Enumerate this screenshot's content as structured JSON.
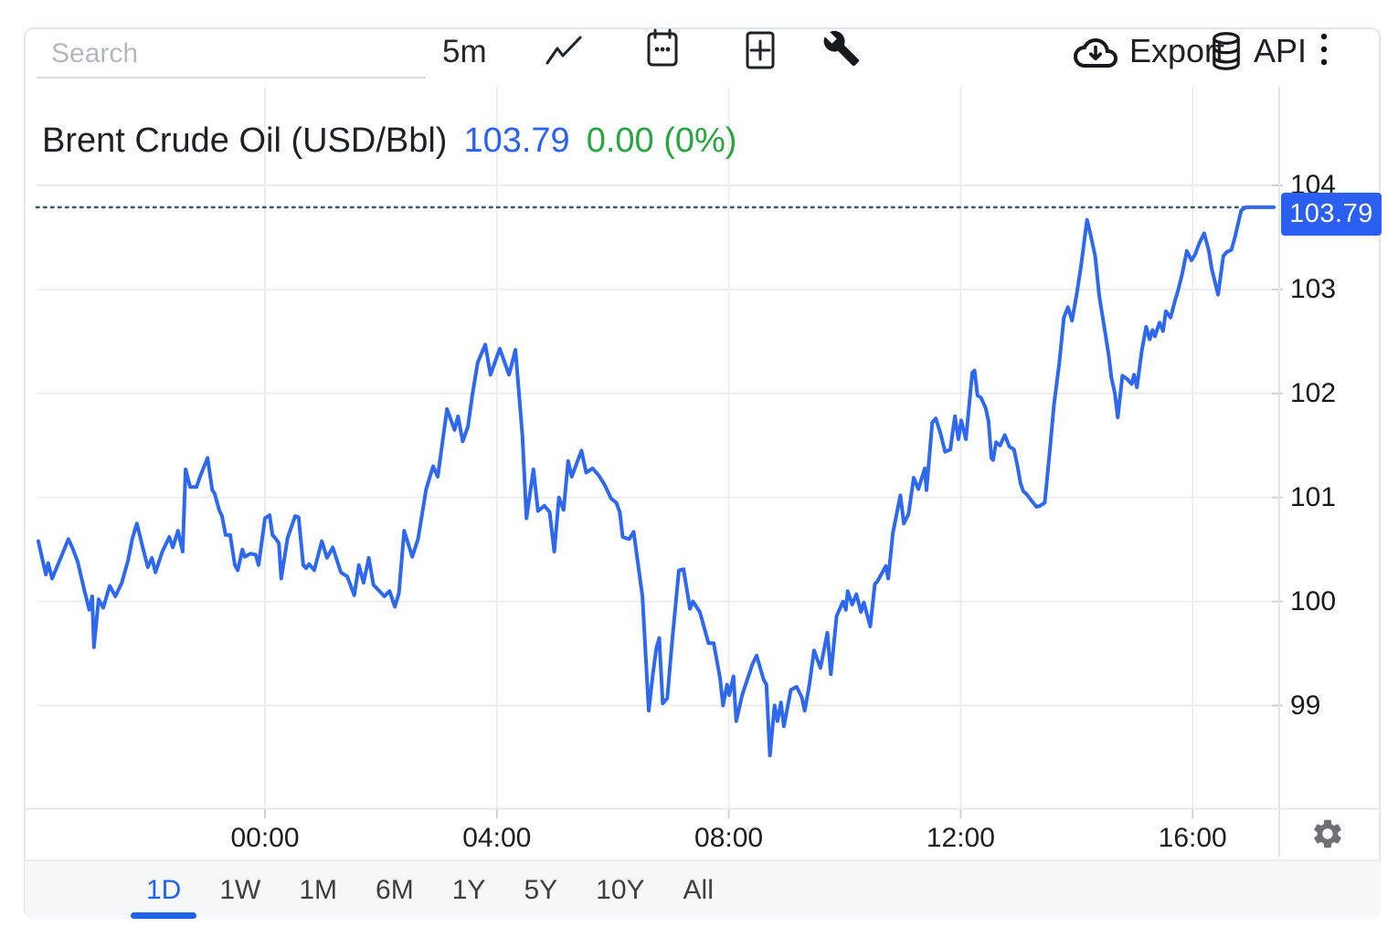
{
  "colors": {
    "line_blue": "#2e68ee",
    "badge_blue": "#2a5ff2",
    "price_text_blue": "#2b63f0",
    "change_green": "#27a53e",
    "active_tab_blue": "#1e63ea",
    "dotted_line": "#3d5a6e",
    "grid": "#ebedef",
    "tick": "#cfd3d7",
    "border": "#e4e7ea",
    "text_dark": "#1d2024",
    "icon_gray": "#6d7176"
  },
  "toolbar": {
    "search_placeholder": "Search",
    "interval": "5m",
    "export_label": "Export",
    "api_label": "API",
    "icons": [
      "line-chart-icon",
      "calendar-icon",
      "add-panel-icon",
      "tools-wrench-icon",
      "export-cloud-icon",
      "api-database-icon",
      "more-menu-icon",
      "settings-gear-icon"
    ]
  },
  "header": {
    "title": "Brent Crude Oil (USD/Bbl)",
    "price": "103.79",
    "change": "0.00 (0%)"
  },
  "price_badge": "103.79",
  "footer": {
    "tabs": [
      "1D",
      "1W",
      "1M",
      "6M",
      "1Y",
      "5Y",
      "10Y",
      "All"
    ],
    "active_tab": "1D"
  },
  "chart_data": {
    "type": "line",
    "title": "Brent Crude Oil (USD/Bbl) intraday",
    "series_name": "Brent Crude Oil",
    "unit": "USD/Bbl",
    "interval": "5m",
    "last_price": 103.79,
    "change": "0.00 (0%)",
    "grid": true,
    "line_color": "#2e68ee",
    "y_axis": {
      "ticks": [
        104,
        103,
        102,
        101,
        100,
        99
      ],
      "visible_range": [
        98.05,
        104.95
      ]
    },
    "x_axis": {
      "ticks": [
        {
          "t": 0,
          "label": "00:00"
        },
        {
          "t": 4,
          "label": "04:00"
        },
        {
          "t": 8,
          "label": "08:00"
        },
        {
          "t": 12,
          "label": "12:00"
        },
        {
          "t": 16,
          "label": "16:00"
        }
      ],
      "range_hours": [
        -3.95,
        17.45
      ],
      "note": "t = hours relative to midnight shown on axis"
    },
    "points": [
      [
        -3.91,
        100.58
      ],
      [
        -3.78,
        100.26
      ],
      [
        -3.74,
        100.37
      ],
      [
        -3.67,
        100.22
      ],
      [
        -3.59,
        100.33
      ],
      [
        -3.5,
        100.45
      ],
      [
        -3.39,
        100.6
      ],
      [
        -3.31,
        100.5
      ],
      [
        -3.23,
        100.38
      ],
      [
        -3.12,
        100.12
      ],
      [
        -3.03,
        99.92
      ],
      [
        -2.98,
        100.05
      ],
      [
        -2.95,
        99.56
      ],
      [
        -2.87,
        100.02
      ],
      [
        -2.79,
        99.94
      ],
      [
        -2.68,
        100.15
      ],
      [
        -2.58,
        100.05
      ],
      [
        -2.47,
        100.18
      ],
      [
        -2.36,
        100.4
      ],
      [
        -2.29,
        100.6
      ],
      [
        -2.21,
        100.75
      ],
      [
        -2.1,
        100.5
      ],
      [
        -2.02,
        100.33
      ],
      [
        -1.95,
        100.42
      ],
      [
        -1.89,
        100.28
      ],
      [
        -1.77,
        100.48
      ],
      [
        -1.65,
        100.62
      ],
      [
        -1.59,
        100.52
      ],
      [
        -1.5,
        100.68
      ],
      [
        -1.42,
        100.48
      ],
      [
        -1.37,
        101.27
      ],
      [
        -1.29,
        101.1
      ],
      [
        -1.18,
        101.1
      ],
      [
        -1.12,
        101.2
      ],
      [
        -0.99,
        101.38
      ],
      [
        -0.91,
        101.07
      ],
      [
        -0.87,
        101.04
      ],
      [
        -0.79,
        100.88
      ],
      [
        -0.74,
        100.82
      ],
      [
        -0.68,
        100.64
      ],
      [
        -0.6,
        100.64
      ],
      [
        -0.52,
        100.35
      ],
      [
        -0.47,
        100.3
      ],
      [
        -0.39,
        100.5
      ],
      [
        -0.35,
        100.43
      ],
      [
        -0.25,
        100.46
      ],
      [
        -0.16,
        100.45
      ],
      [
        -0.11,
        100.35
      ],
      [
        0.0,
        100.8
      ],
      [
        0.08,
        100.83
      ],
      [
        0.13,
        100.64
      ],
      [
        0.19,
        100.6
      ],
      [
        0.24,
        100.56
      ],
      [
        0.28,
        100.22
      ],
      [
        0.39,
        100.61
      ],
      [
        0.52,
        100.82
      ],
      [
        0.58,
        100.81
      ],
      [
        0.66,
        100.35
      ],
      [
        0.71,
        100.32
      ],
      [
        0.76,
        100.36
      ],
      [
        0.85,
        100.3
      ],
      [
        0.98,
        100.58
      ],
      [
        1.07,
        100.42
      ],
      [
        1.17,
        100.52
      ],
      [
        1.31,
        100.28
      ],
      [
        1.42,
        100.24
      ],
      [
        1.54,
        100.06
      ],
      [
        1.62,
        100.35
      ],
      [
        1.7,
        100.18
      ],
      [
        1.79,
        100.42
      ],
      [
        1.87,
        100.16
      ],
      [
        2.06,
        100.05
      ],
      [
        2.15,
        100.1
      ],
      [
        2.24,
        99.95
      ],
      [
        2.31,
        100.08
      ],
      [
        2.4,
        100.68
      ],
      [
        2.54,
        100.43
      ],
      [
        2.64,
        100.6
      ],
      [
        2.78,
        101.08
      ],
      [
        2.9,
        101.3
      ],
      [
        2.98,
        101.2
      ],
      [
        3.14,
        101.85
      ],
      [
        3.27,
        101.65
      ],
      [
        3.33,
        101.78
      ],
      [
        3.41,
        101.54
      ],
      [
        3.5,
        101.68
      ],
      [
        3.58,
        102.0
      ],
      [
        3.67,
        102.3
      ],
      [
        3.8,
        102.47
      ],
      [
        3.89,
        102.18
      ],
      [
        4.05,
        102.43
      ],
      [
        4.21,
        102.18
      ],
      [
        4.32,
        102.42
      ],
      [
        4.44,
        101.6
      ],
      [
        4.51,
        100.8
      ],
      [
        4.63,
        101.27
      ],
      [
        4.71,
        100.87
      ],
      [
        4.82,
        100.92
      ],
      [
        4.91,
        100.86
      ],
      [
        4.99,
        100.48
      ],
      [
        5.07,
        101.0
      ],
      [
        5.15,
        100.88
      ],
      [
        5.23,
        101.35
      ],
      [
        5.29,
        101.2
      ],
      [
        5.46,
        101.45
      ],
      [
        5.54,
        101.24
      ],
      [
        5.65,
        101.28
      ],
      [
        5.76,
        101.21
      ],
      [
        5.86,
        101.12
      ],
      [
        5.97,
        100.99
      ],
      [
        6.06,
        100.95
      ],
      [
        6.12,
        100.86
      ],
      [
        6.17,
        100.62
      ],
      [
        6.28,
        100.6
      ],
      [
        6.36,
        100.67
      ],
      [
        6.44,
        100.34
      ],
      [
        6.51,
        100.05
      ],
      [
        6.62,
        98.95
      ],
      [
        6.69,
        99.3
      ],
      [
        6.75,
        99.55
      ],
      [
        6.8,
        99.65
      ],
      [
        6.86,
        99.02
      ],
      [
        6.94,
        99.07
      ],
      [
        7.02,
        99.6
      ],
      [
        7.14,
        100.3
      ],
      [
        7.22,
        100.31
      ],
      [
        7.33,
        99.93
      ],
      [
        7.38,
        100.0
      ],
      [
        7.5,
        99.9
      ],
      [
        7.65,
        99.6
      ],
      [
        7.74,
        99.6
      ],
      [
        7.85,
        99.26
      ],
      [
        7.9,
        99.0
      ],
      [
        7.97,
        99.2
      ],
      [
        8.01,
        99.1
      ],
      [
        8.08,
        99.28
      ],
      [
        8.13,
        98.85
      ],
      [
        8.23,
        99.1
      ],
      [
        8.32,
        99.25
      ],
      [
        8.41,
        99.4
      ],
      [
        8.48,
        99.48
      ],
      [
        8.6,
        99.25
      ],
      [
        8.65,
        99.2
      ],
      [
        8.71,
        98.52
      ],
      [
        8.79,
        99.0
      ],
      [
        8.84,
        98.85
      ],
      [
        8.9,
        99.03
      ],
      [
        8.95,
        98.8
      ],
      [
        9.07,
        99.15
      ],
      [
        9.17,
        99.18
      ],
      [
        9.26,
        99.08
      ],
      [
        9.31,
        98.95
      ],
      [
        9.39,
        99.2
      ],
      [
        9.47,
        99.53
      ],
      [
        9.58,
        99.36
      ],
      [
        9.7,
        99.7
      ],
      [
        9.76,
        99.3
      ],
      [
        9.86,
        99.86
      ],
      [
        9.97,
        100.0
      ],
      [
        10.02,
        99.92
      ],
      [
        10.05,
        100.1
      ],
      [
        10.13,
        99.97
      ],
      [
        10.2,
        100.07
      ],
      [
        10.28,
        99.9
      ],
      [
        10.33,
        99.99
      ],
      [
        10.44,
        99.76
      ],
      [
        10.52,
        100.17
      ],
      [
        10.56,
        100.19
      ],
      [
        10.71,
        100.34
      ],
      [
        10.75,
        100.22
      ],
      [
        10.83,
        100.66
      ],
      [
        10.96,
        101.02
      ],
      [
        11.02,
        100.75
      ],
      [
        11.1,
        100.84
      ],
      [
        11.19,
        101.19
      ],
      [
        11.27,
        101.08
      ],
      [
        11.38,
        101.28
      ],
      [
        11.41,
        101.07
      ],
      [
        11.51,
        101.72
      ],
      [
        11.57,
        101.76
      ],
      [
        11.65,
        101.62
      ],
      [
        11.73,
        101.44
      ],
      [
        11.82,
        101.46
      ],
      [
        11.9,
        101.78
      ],
      [
        11.96,
        101.56
      ],
      [
        12.01,
        101.74
      ],
      [
        12.09,
        101.56
      ],
      [
        12.2,
        102.2
      ],
      [
        12.24,
        102.22
      ],
      [
        12.29,
        101.98
      ],
      [
        12.35,
        101.96
      ],
      [
        12.43,
        101.86
      ],
      [
        12.48,
        101.73
      ],
      [
        12.53,
        101.38
      ],
      [
        12.56,
        101.36
      ],
      [
        12.61,
        101.53
      ],
      [
        12.68,
        101.5
      ],
      [
        12.76,
        101.6
      ],
      [
        12.84,
        101.49
      ],
      [
        12.92,
        101.46
      ],
      [
        12.98,
        101.3
      ],
      [
        13.03,
        101.14
      ],
      [
        13.08,
        101.06
      ],
      [
        13.14,
        101.03
      ],
      [
        13.22,
        100.97
      ],
      [
        13.31,
        100.91
      ],
      [
        13.37,
        100.92
      ],
      [
        13.45,
        100.95
      ],
      [
        13.53,
        101.41
      ],
      [
        13.61,
        101.9
      ],
      [
        13.7,
        102.29
      ],
      [
        13.78,
        102.73
      ],
      [
        13.85,
        102.83
      ],
      [
        13.92,
        102.7
      ],
      [
        14.0,
        102.95
      ],
      [
        14.07,
        103.2
      ],
      [
        14.18,
        103.67
      ],
      [
        14.25,
        103.5
      ],
      [
        14.32,
        103.32
      ],
      [
        14.39,
        102.94
      ],
      [
        14.49,
        102.59
      ],
      [
        14.55,
        102.38
      ],
      [
        14.6,
        102.15
      ],
      [
        14.66,
        102.0
      ],
      [
        14.71,
        101.77
      ],
      [
        14.79,
        102.17
      ],
      [
        14.87,
        102.14
      ],
      [
        14.95,
        102.09
      ],
      [
        14.99,
        102.18
      ],
      [
        15.04,
        102.06
      ],
      [
        15.12,
        102.4
      ],
      [
        15.2,
        102.64
      ],
      [
        15.26,
        102.52
      ],
      [
        15.31,
        102.61
      ],
      [
        15.35,
        102.55
      ],
      [
        15.43,
        102.68
      ],
      [
        15.49,
        102.6
      ],
      [
        15.54,
        102.79
      ],
      [
        15.62,
        102.73
      ],
      [
        15.7,
        102.9
      ],
      [
        15.75,
        102.99
      ],
      [
        15.82,
        103.15
      ],
      [
        15.9,
        103.37
      ],
      [
        15.98,
        103.28
      ],
      [
        16.04,
        103.33
      ],
      [
        16.12,
        103.45
      ],
      [
        16.2,
        103.54
      ],
      [
        16.28,
        103.37
      ],
      [
        16.33,
        103.2
      ],
      [
        16.44,
        102.95
      ],
      [
        16.53,
        103.32
      ],
      [
        16.59,
        103.36
      ],
      [
        16.67,
        103.38
      ],
      [
        16.73,
        103.5
      ],
      [
        16.8,
        103.67
      ],
      [
        16.84,
        103.76
      ],
      [
        16.92,
        103.79
      ],
      [
        17.4,
        103.79
      ]
    ]
  }
}
